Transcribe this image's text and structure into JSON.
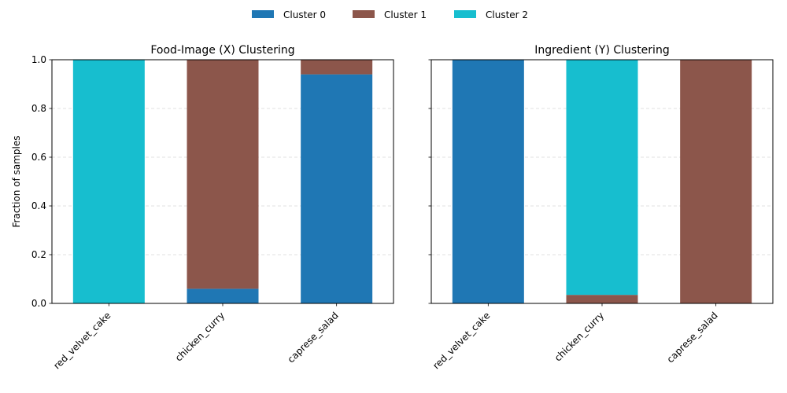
{
  "legend": {
    "placement": "top-center",
    "entries": [
      {
        "label": "Cluster 0",
        "color": "#1f77b4"
      },
      {
        "label": "Cluster 1",
        "color": "#8c564b"
      },
      {
        "label": "Cluster 2",
        "color": "#17becf"
      }
    ]
  },
  "chart_data": [
    {
      "type": "bar",
      "stacked": true,
      "title": "Food-Image (X) Clustering",
      "xlabel": "",
      "ylabel": "Fraction of samples",
      "ylim": [
        0,
        1.0
      ],
      "yticks": [
        "0.0",
        "0.2",
        "0.4",
        "0.6",
        "0.8",
        "1.0"
      ],
      "grid": "y-dashed",
      "categories": [
        "red_velvet_cake",
        "chicken_curry",
        "caprese_salad"
      ],
      "series": [
        {
          "name": "Cluster 0",
          "color": "#1f77b4",
          "values": [
            0.0,
            0.06,
            0.94
          ]
        },
        {
          "name": "Cluster 1",
          "color": "#8c564b",
          "values": [
            0.0,
            0.94,
            0.06
          ]
        },
        {
          "name": "Cluster 2",
          "color": "#17becf",
          "values": [
            1.0,
            0.0,
            0.0
          ]
        }
      ]
    },
    {
      "type": "bar",
      "stacked": true,
      "title": "Ingredient (Y) Clustering",
      "xlabel": "",
      "ylabel": "",
      "ylim": [
        0,
        1.0
      ],
      "yticks": [],
      "grid": "y-dashed",
      "categories": [
        "red_velvet_cake",
        "chicken_curry",
        "caprese_salad"
      ],
      "series": [
        {
          "name": "Cluster 0",
          "color": "#1f77b4",
          "values": [
            1.0,
            0.0,
            0.0
          ]
        },
        {
          "name": "Cluster 1",
          "color": "#8c564b",
          "values": [
            0.0,
            0.035,
            1.0
          ]
        },
        {
          "name": "Cluster 2",
          "color": "#17becf",
          "values": [
            0.0,
            0.965,
            0.0
          ]
        }
      ]
    }
  ]
}
